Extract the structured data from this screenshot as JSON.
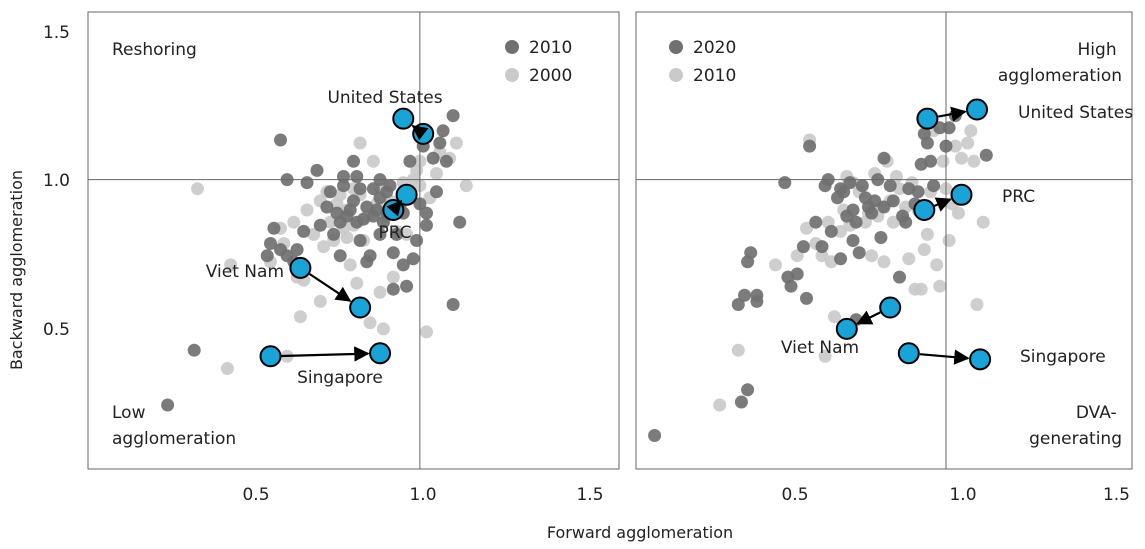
{
  "chart_data": [
    {
      "type": "scatter",
      "panel": "left",
      "xlabel": "Forward agglomeration",
      "ylabel": "Backward agglomeration",
      "xlim": [
        0.0,
        1.6
      ],
      "ylim": [
        0.05,
        1.55
      ],
      "xticks": [
        "0.5",
        "1.0",
        "1.5"
      ],
      "yticks": [
        "0.5",
        "1.0",
        "1.5"
      ],
      "reference_lines": {
        "x": 1.0,
        "y": 1.0
      },
      "grid": false,
      "legend_position": "top-right",
      "quadrant_labels": [
        {
          "text": "Reshoring",
          "position": "top-left"
        },
        {
          "text": "Low\nagglomeration",
          "position": "bottom-left"
        }
      ],
      "series": [
        {
          "name": "2010",
          "color": "#707070",
          "points": [
            [
              0.24,
              0.26
            ],
            [
              0.32,
              0.44
            ],
            [
              0.54,
              0.75
            ],
            [
              0.55,
              0.79
            ],
            [
              0.56,
              0.84
            ],
            [
              0.58,
              0.77
            ],
            [
              0.58,
              1.13
            ],
            [
              0.6,
              0.75
            ],
            [
              0.6,
              1.0
            ],
            [
              0.62,
              0.73
            ],
            [
              0.63,
              0.77
            ],
            [
              0.65,
              0.83
            ],
            [
              0.66,
              0.99
            ],
            [
              0.69,
              1.03
            ],
            [
              0.7,
              0.85
            ],
            [
              0.72,
              0.91
            ],
            [
              0.73,
              0.96
            ],
            [
              0.75,
              0.89
            ],
            [
              0.76,
              0.86
            ],
            [
              0.76,
              0.75
            ],
            [
              0.77,
              0.98
            ],
            [
              0.77,
              1.01
            ],
            [
              0.78,
              0.88
            ],
            [
              0.79,
              0.9
            ],
            [
              0.8,
              1.06
            ],
            [
              0.8,
              0.93
            ],
            [
              0.81,
              0.86
            ],
            [
              0.81,
              1.01
            ],
            [
              0.82,
              0.97
            ],
            [
              0.83,
              0.87
            ],
            [
              0.84,
              0.91
            ],
            [
              0.85,
              0.75
            ],
            [
              0.86,
              0.97
            ],
            [
              0.86,
              0.88
            ],
            [
              0.87,
              0.9
            ],
            [
              0.88,
              1.0
            ],
            [
              0.88,
              0.94
            ],
            [
              0.89,
              0.86
            ],
            [
              0.9,
              0.96
            ],
            [
              0.9,
              0.89
            ],
            [
              0.91,
              0.98
            ],
            [
              0.92,
              0.64
            ],
            [
              0.92,
              0.76
            ],
            [
              0.93,
              0.82
            ],
            [
              0.94,
              0.91
            ],
            [
              0.95,
              0.72
            ],
            [
              0.96,
              0.65
            ],
            [
              0.97,
              1.06
            ],
            [
              0.97,
              0.96
            ],
            [
              0.99,
              0.8
            ],
            [
              1.0,
              0.92
            ],
            [
              1.01,
              1.11
            ],
            [
              1.02,
              0.89
            ],
            [
              1.02,
              0.85
            ],
            [
              1.04,
              1.07
            ],
            [
              1.05,
              0.96
            ],
            [
              1.06,
              1.12
            ],
            [
              1.07,
              1.16
            ],
            [
              1.08,
              1.06
            ],
            [
              1.1,
              1.21
            ],
            [
              1.1,
              0.59
            ],
            [
              1.12,
              0.86
            ],
            [
              0.84,
              0.73
            ],
            [
              0.88,
              0.82
            ],
            [
              0.95,
              0.89
            ],
            [
              0.98,
              0.74
            ],
            [
              0.74,
              0.82
            ],
            [
              0.82,
              0.8
            ]
          ]
        },
        {
          "name": "2000",
          "color": "#cacaca",
          "points": [
            [
              0.33,
              0.97
            ],
            [
              0.42,
              0.38
            ],
            [
              0.43,
              0.72
            ],
            [
              0.55,
              0.73
            ],
            [
              0.58,
              0.84
            ],
            [
              0.59,
              0.79
            ],
            [
              0.6,
              0.42
            ],
            [
              0.62,
              0.86
            ],
            [
              0.63,
              0.68
            ],
            [
              0.64,
              0.55
            ],
            [
              0.65,
              0.67
            ],
            [
              0.66,
              0.9
            ],
            [
              0.68,
              0.82
            ],
            [
              0.7,
              0.93
            ],
            [
              0.71,
              0.78
            ],
            [
              0.72,
              0.96
            ],
            [
              0.73,
              0.86
            ],
            [
              0.74,
              0.8
            ],
            [
              0.75,
              0.92
            ],
            [
              0.76,
              0.95
            ],
            [
              0.77,
              0.84
            ],
            [
              0.78,
              0.81
            ],
            [
              0.79,
              0.72
            ],
            [
              0.8,
              0.85
            ],
            [
              0.8,
              0.97
            ],
            [
              0.81,
              0.66
            ],
            [
              0.82,
              0.95
            ],
            [
              0.82,
              1.12
            ],
            [
              0.83,
              0.8
            ],
            [
              0.84,
              0.88
            ],
            [
              0.85,
              0.53
            ],
            [
              0.86,
              1.06
            ],
            [
              0.87,
              0.92
            ],
            [
              0.88,
              0.97
            ],
            [
              0.88,
              0.63
            ],
            [
              0.89,
              0.51
            ],
            [
              0.9,
              0.88
            ],
            [
              0.91,
              0.93
            ],
            [
              0.93,
              0.83
            ],
            [
              0.94,
              0.93
            ],
            [
              0.95,
              0.99
            ],
            [
              0.96,
              0.82
            ],
            [
              0.98,
              1.0
            ],
            [
              0.99,
              1.03
            ],
            [
              1.0,
              1.06
            ],
            [
              1.02,
              0.5
            ],
            [
              1.03,
              0.94
            ],
            [
              1.05,
              1.02
            ],
            [
              1.06,
              1.09
            ],
            [
              1.09,
              1.07
            ],
            [
              1.11,
              1.12
            ],
            [
              1.14,
              0.98
            ],
            [
              1.0,
              0.98
            ],
            [
              0.7,
              0.6
            ],
            [
              0.78,
              0.9
            ],
            [
              0.92,
              0.68
            ]
          ]
        }
      ],
      "highlights": [
        {
          "label": "United States",
          "from": [
            1.01,
            1.15
          ],
          "to": [
            0.95,
            1.2
          ]
        },
        {
          "label": "PRC",
          "from": [
            0.96,
            0.95
          ],
          "to": [
            0.92,
            0.9
          ]
        },
        {
          "label": "Viet Nam",
          "from": [
            0.64,
            0.71
          ],
          "to": [
            0.82,
            0.58
          ]
        },
        {
          "label": "Singapore",
          "from": [
            0.55,
            0.42
          ],
          "to": [
            0.88,
            0.43
          ]
        }
      ]
    },
    {
      "type": "scatter",
      "panel": "right",
      "xlabel": "Forward agglomeration",
      "ylabel": "Backward agglomeration",
      "xlim": [
        0.0,
        1.6
      ],
      "ylim": [
        0.05,
        1.55
      ],
      "xticks": [
        "0.5",
        "1.0",
        "1.5"
      ],
      "yticks": [],
      "reference_lines": {
        "x": 1.0,
        "y": 1.0
      },
      "grid": false,
      "legend_position": "top-left",
      "quadrant_labels": [
        {
          "text": "High\nagglomeration",
          "position": "top-right"
        },
        {
          "text": "DVA-\ngenerating",
          "position": "bottom-right"
        }
      ],
      "series": [
        {
          "name": "2020",
          "color": "#707070",
          "points": [
            [
              0.06,
              0.16
            ],
            [
              0.33,
              0.59
            ],
            [
              0.34,
              0.27
            ],
            [
              0.35,
              0.62
            ],
            [
              0.36,
              0.31
            ],
            [
              0.36,
              0.73
            ],
            [
              0.37,
              0.76
            ],
            [
              0.39,
              0.6
            ],
            [
              0.39,
              0.62
            ],
            [
              0.48,
              0.99
            ],
            [
              0.49,
              0.68
            ],
            [
              0.5,
              0.65
            ],
            [
              0.52,
              0.69
            ],
            [
              0.54,
              0.78
            ],
            [
              0.55,
              0.61
            ],
            [
              0.56,
              1.11
            ],
            [
              0.58,
              0.86
            ],
            [
              0.6,
              0.78
            ],
            [
              0.61,
              0.98
            ],
            [
              0.62,
              1.0
            ],
            [
              0.63,
              0.83
            ],
            [
              0.65,
              0.94
            ],
            [
              0.66,
              0.97
            ],
            [
              0.67,
              0.96
            ],
            [
              0.68,
              0.88
            ],
            [
              0.69,
              0.99
            ],
            [
              0.7,
              0.8
            ],
            [
              0.7,
              0.9
            ],
            [
              0.71,
              0.86
            ],
            [
              0.72,
              0.76
            ],
            [
              0.73,
              0.98
            ],
            [
              0.74,
              0.94
            ],
            [
              0.75,
              0.91
            ],
            [
              0.76,
              0.89
            ],
            [
              0.77,
              0.93
            ],
            [
              0.78,
              1.0
            ],
            [
              0.79,
              0.81
            ],
            [
              0.8,
              1.07
            ],
            [
              0.8,
              0.91
            ],
            [
              0.82,
              0.98
            ],
            [
              0.83,
              0.93
            ],
            [
              0.85,
              0.68
            ],
            [
              0.86,
              0.88
            ],
            [
              0.87,
              0.86
            ],
            [
              0.88,
              0.97
            ],
            [
              0.9,
              0.92
            ],
            [
              0.91,
              0.96
            ],
            [
              0.92,
              1.05
            ],
            [
              0.93,
              1.15
            ],
            [
              0.94,
              1.12
            ],
            [
              0.95,
              1.06
            ],
            [
              0.96,
              0.98
            ],
            [
              0.98,
              1.17
            ],
            [
              1.0,
              1.11
            ],
            [
              1.01,
              1.17
            ],
            [
              1.03,
              1.21
            ],
            [
              1.13,
              1.08
            ],
            [
              0.71,
              0.54
            ],
            [
              0.66,
              0.74
            ]
          ]
        },
        {
          "name": "2010",
          "color": "#cacaca",
          "points": [
            [
              0.27,
              0.26
            ],
            [
              0.33,
              0.44
            ],
            [
              0.45,
              0.72
            ],
            [
              0.52,
              0.75
            ],
            [
              0.55,
              0.84
            ],
            [
              0.56,
              1.13
            ],
            [
              0.58,
              0.79
            ],
            [
              0.6,
              0.75
            ],
            [
              0.61,
              0.42
            ],
            [
              0.62,
              0.86
            ],
            [
              0.63,
              0.73
            ],
            [
              0.64,
              0.55
            ],
            [
              0.66,
              0.83
            ],
            [
              0.67,
              0.9
            ],
            [
              0.68,
              1.01
            ],
            [
              0.69,
              0.85
            ],
            [
              0.7,
              0.99
            ],
            [
              0.72,
              0.96
            ],
            [
              0.74,
              0.86
            ],
            [
              0.75,
              0.89
            ],
            [
              0.76,
              0.75
            ],
            [
              0.77,
              1.02
            ],
            [
              0.78,
              0.88
            ],
            [
              0.79,
              0.91
            ],
            [
              0.8,
              0.73
            ],
            [
              0.81,
              1.06
            ],
            [
              0.82,
              0.93
            ],
            [
              0.83,
              0.86
            ],
            [
              0.84,
              1.01
            ],
            [
              0.85,
              0.97
            ],
            [
              0.86,
              0.87
            ],
            [
              0.87,
              0.91
            ],
            [
              0.88,
              0.74
            ],
            [
              0.89,
              0.99
            ],
            [
              0.9,
              0.64
            ],
            [
              0.91,
              0.9
            ],
            [
              0.92,
              0.64
            ],
            [
              0.93,
              0.77
            ],
            [
              0.94,
              0.82
            ],
            [
              0.95,
              0.96
            ],
            [
              0.96,
              1.16
            ],
            [
              0.97,
              0.72
            ],
            [
              0.98,
              0.65
            ],
            [
              0.99,
              1.06
            ],
            [
              1.0,
              0.97
            ],
            [
              1.01,
              0.8
            ],
            [
              1.02,
              0.92
            ],
            [
              1.03,
              1.11
            ],
            [
              1.04,
              0.89
            ],
            [
              1.05,
              1.07
            ],
            [
              1.06,
              0.96
            ],
            [
              1.07,
              1.12
            ],
            [
              1.08,
              1.16
            ],
            [
              1.09,
              1.06
            ],
            [
              1.1,
              0.59
            ],
            [
              1.12,
              0.86
            ]
          ]
        }
      ],
      "highlights": [
        {
          "label": "United States",
          "from": [
            0.94,
            1.2
          ],
          "to": [
            1.1,
            1.23
          ]
        },
        {
          "label": "PRC",
          "from": [
            0.93,
            0.9
          ],
          "to": [
            1.05,
            0.95
          ]
        },
        {
          "label": "Viet Nam",
          "from": [
            0.82,
            0.58
          ],
          "to": [
            0.68,
            0.51
          ]
        },
        {
          "label": "Singapore",
          "from": [
            0.88,
            0.43
          ],
          "to": [
            1.11,
            0.41
          ]
        }
      ]
    }
  ],
  "highlight_color": "#19a3d6"
}
